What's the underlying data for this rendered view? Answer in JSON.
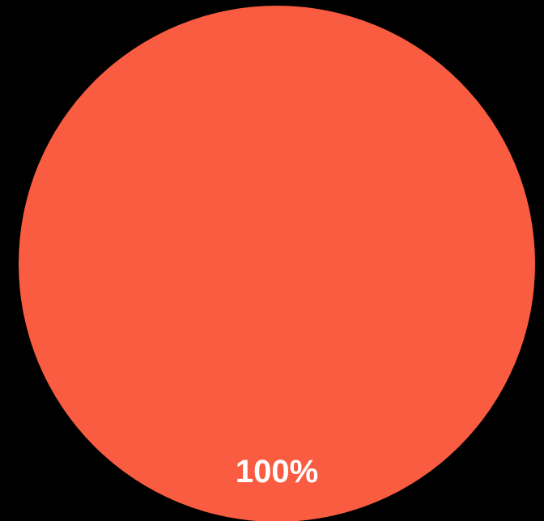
{
  "chart_data": {
    "type": "pie",
    "title": "",
    "slices": [
      {
        "value": 100,
        "label": "100%",
        "color": "#f95c40"
      }
    ],
    "legend": "none"
  },
  "background_color": "#000000"
}
